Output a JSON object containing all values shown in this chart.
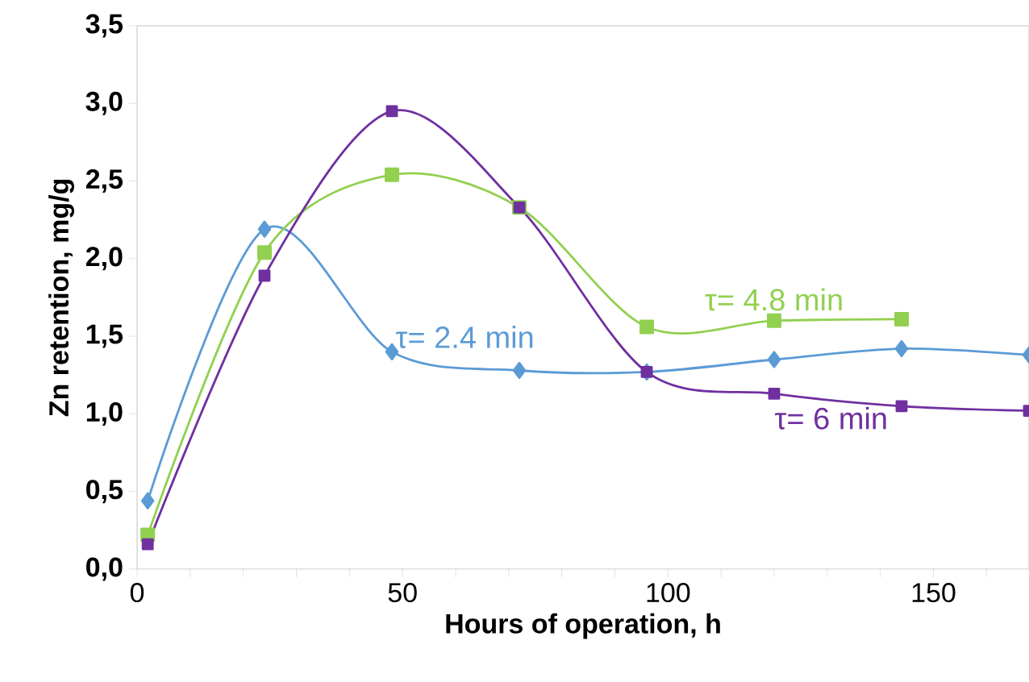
{
  "chart_data": {
    "type": "line",
    "xlabel": "Hours of operation, h",
    "ylabel": "Zn retention, mg/g",
    "x": [
      2,
      24,
      48,
      72,
      96,
      120,
      144,
      168
    ],
    "xlim": [
      0,
      168
    ],
    "xticks": [
      0,
      {
        "value": 10,
        "label": null
      },
      {
        "value": 20,
        "label": null
      },
      {
        "value": 30,
        "label": null
      },
      {
        "value": 40,
        "label": null
      },
      50,
      {
        "value": 60,
        "label": null
      },
      {
        "value": 70,
        "label": null
      },
      {
        "value": 80,
        "label": null
      },
      {
        "value": 90,
        "label": null
      },
      100,
      {
        "value": 110,
        "label": null
      },
      {
        "value": 120,
        "label": null
      },
      {
        "value": 130,
        "label": null
      },
      {
        "value": 140,
        "label": null
      },
      150,
      {
        "value": 160,
        "label": null
      }
    ],
    "ylim": [
      0,
      3.5
    ],
    "yticks": [
      {
        "value": 0,
        "label": "0,0"
      },
      {
        "value": 0.5,
        "label": "0,5"
      },
      {
        "value": 1,
        "label": "1,0"
      },
      {
        "value": 1.5,
        "label": "1,5"
      },
      {
        "value": 2,
        "label": "2,0"
      },
      {
        "value": 2.5,
        "label": "2,5"
      },
      {
        "value": 3,
        "label": "3,0"
      },
      {
        "value": 3.5,
        "label": "3,5"
      }
    ],
    "grid": false,
    "legend": false,
    "line_style": "solid",
    "series": [
      {
        "name": "τ= 2.4 min",
        "color": "#5b9bd5",
        "marker": "diamond",
        "values": [
          0.44,
          2.19,
          1.4,
          1.28,
          1.27,
          1.35,
          1.42,
          1.38
        ]
      },
      {
        "name": "τ= 4.8 min",
        "color": "#92d050",
        "marker": "square",
        "values": [
          0.22,
          2.04,
          2.54,
          2.33,
          1.56,
          1.6,
          1.61,
          null
        ]
      },
      {
        "name": "τ= 6 min",
        "color": "#7030a0",
        "marker": "square",
        "values": [
          0.16,
          1.89,
          2.95,
          2.33,
          1.27,
          1.13,
          1.05,
          1.02
        ]
      }
    ]
  }
}
